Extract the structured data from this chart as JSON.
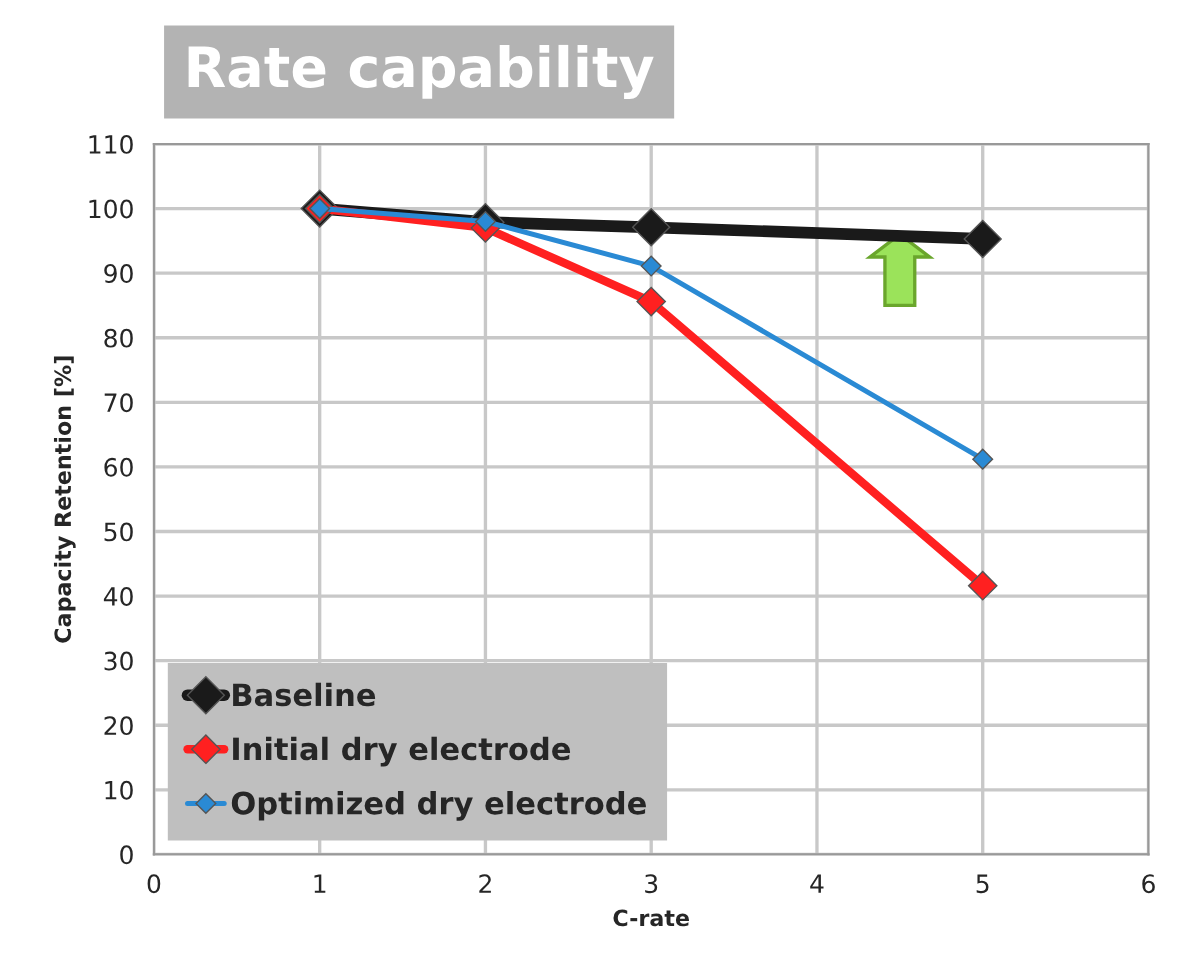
{
  "chart_data": {
    "type": "line",
    "title": "Rate capability",
    "xlabel": "C-rate",
    "ylabel": "Capacity Retention [%]",
    "x": [
      1,
      2,
      3,
      5
    ],
    "series": [
      {
        "name": "Baseline",
        "color": "#1a1a1a",
        "values": [
          100,
          97.9,
          97.1,
          95.3
        ]
      },
      {
        "name": "Initial dry electrode",
        "color": "#ff2020",
        "values": [
          100,
          97,
          85.6,
          41.6
        ]
      },
      {
        "name": "Optimized dry electrode",
        "color": "#2a8ad4",
        "values": [
          100,
          98,
          91.1,
          61.2
        ]
      }
    ],
    "xlim": [
      0,
      6
    ],
    "xticks": [
      0,
      1,
      2,
      3,
      4,
      5,
      6
    ],
    "ylim": [
      0,
      110
    ],
    "yticks": [
      0,
      10,
      20,
      30,
      40,
      50,
      60,
      70,
      80,
      90,
      100,
      110
    ],
    "grid": true,
    "legend": "bottom left",
    "marker": "diamond",
    "line_style": "solid"
  }
}
